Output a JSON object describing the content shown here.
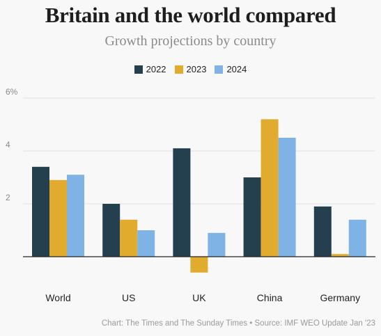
{
  "chart_data": {
    "type": "bar",
    "title": "Britain and the world compared",
    "subtitle": "Growth projections by country",
    "categories": [
      "World",
      "US",
      "UK",
      "China",
      "Germany"
    ],
    "series": [
      {
        "name": "2022",
        "color": "#243f4e",
        "values": [
          3.4,
          2.0,
          4.1,
          3.0,
          1.9
        ]
      },
      {
        "name": "2023",
        "color": "#e1ac2d",
        "values": [
          2.9,
          1.4,
          -0.6,
          5.2,
          0.1
        ]
      },
      {
        "name": "2024",
        "color": "#7fb2e5",
        "values": [
          3.1,
          1.0,
          0.9,
          4.5,
          1.4
        ]
      }
    ],
    "yticks": [
      "2",
      "4",
      "6%"
    ],
    "ylim": [
      -1,
      6
    ],
    "grid": true,
    "legend_position": "top-center",
    "source": "Chart: The Times and The Sunday Times • Source: IMF WEO Update Jan '23"
  }
}
